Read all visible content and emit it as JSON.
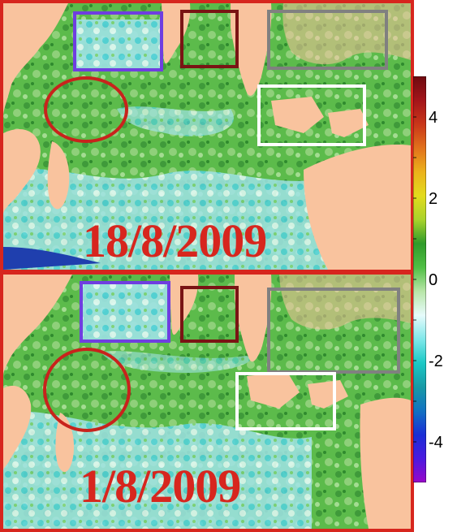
{
  "panels": [
    {
      "id": "top",
      "date": "18/8/2009"
    },
    {
      "id": "bottom",
      "date": "1/8/2009"
    }
  ],
  "colorbar": {
    "range": [
      -5,
      5
    ],
    "ticks": [
      "4",
      "2",
      "0",
      "-2",
      "-4"
    ],
    "colors": [
      "#9a06c9",
      "#4b1ae0",
      "#1a2ed6",
      "#1272c2",
      "#179aa6",
      "#1bc9c6",
      "#7fe8ea",
      "#e6fbfb",
      "#b8e6a8",
      "#4fbf44",
      "#2f9b2a",
      "#a9d32b",
      "#e3db1c",
      "#ecb21b",
      "#e2711b",
      "#c9361a",
      "#a3141a",
      "#6e0a10"
    ]
  },
  "highlight_colors": {
    "purple": "#6f3ee0",
    "maroon": "#7a1414",
    "gray": "#808080",
    "white": "#ffffff",
    "red": "#c8231c"
  },
  "map_colors": {
    "land": "#f9c39e",
    "ocean_green": "#4fae45",
    "ocean_light": "#bfe8b0",
    "ocean_cyan": "#52d2e0",
    "ocean_blue": "#1f3fae"
  }
}
